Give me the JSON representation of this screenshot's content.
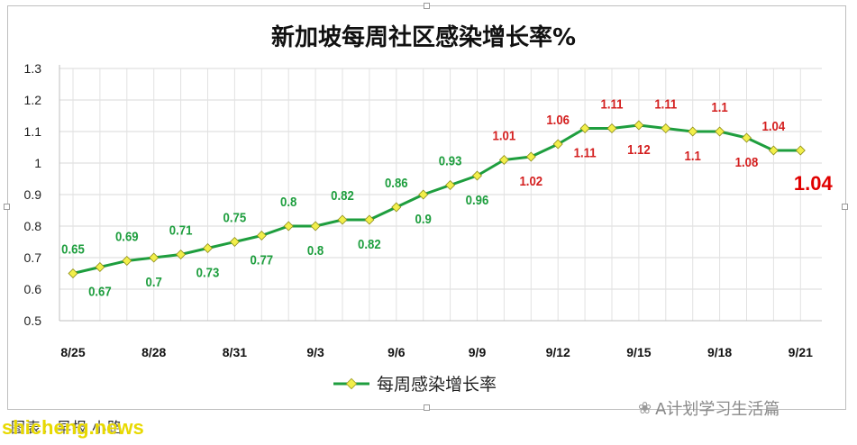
{
  "chart_data": {
    "type": "line",
    "title": "新加坡每周社区感染增长率%",
    "series": [
      {
        "name": "每周感染增长率",
        "color": "#1e9e3e",
        "values": [
          0.65,
          0.67,
          0.69,
          0.7,
          0.71,
          0.73,
          0.75,
          0.77,
          0.8,
          0.8,
          0.82,
          0.82,
          0.86,
          0.9,
          0.93,
          0.96,
          1.01,
          1.02,
          1.06,
          1.11,
          1.11,
          1.12,
          1.11,
          1.1,
          1.1,
          1.08,
          1.04,
          1.04
        ]
      }
    ],
    "x_tick_labels": [
      "8/25",
      "8/28",
      "8/31",
      "9/3",
      "9/6",
      "9/9",
      "9/12",
      "9/15",
      "9/18",
      "9/21"
    ],
    "y_ticks": [
      "0.5",
      "0.6",
      "0.7",
      "0.8",
      "0.9",
      "1",
      "1.1",
      "1.2",
      "1.3"
    ],
    "ylim": [
      0.5,
      1.3
    ],
    "data_labels": [
      "0.65",
      "0.67",
      "0.69",
      "0.7",
      "0.71",
      "0.73",
      "0.75",
      "0.77",
      "0.8",
      "0.8",
      "0.82",
      "0.82",
      "0.86",
      "0.9",
      "0.93",
      "0.96",
      "1.01",
      "1.02",
      "1.06",
      "1.11",
      "1.11",
      "1.12",
      "1.11",
      "1.1",
      "1.1",
      "1.08",
      "1.04",
      ""
    ],
    "highlight_label": "1.04",
    "label_colors": {
      "low": "#1e9e3e",
      "high": "#d42020",
      "highlight": "#e00000"
    },
    "grid": true,
    "legend_position": "bottom"
  },
  "credit": "图表：早报 小路",
  "site_watermark": "shicheng.news",
  "account_watermark": "A计划学习生活篇"
}
